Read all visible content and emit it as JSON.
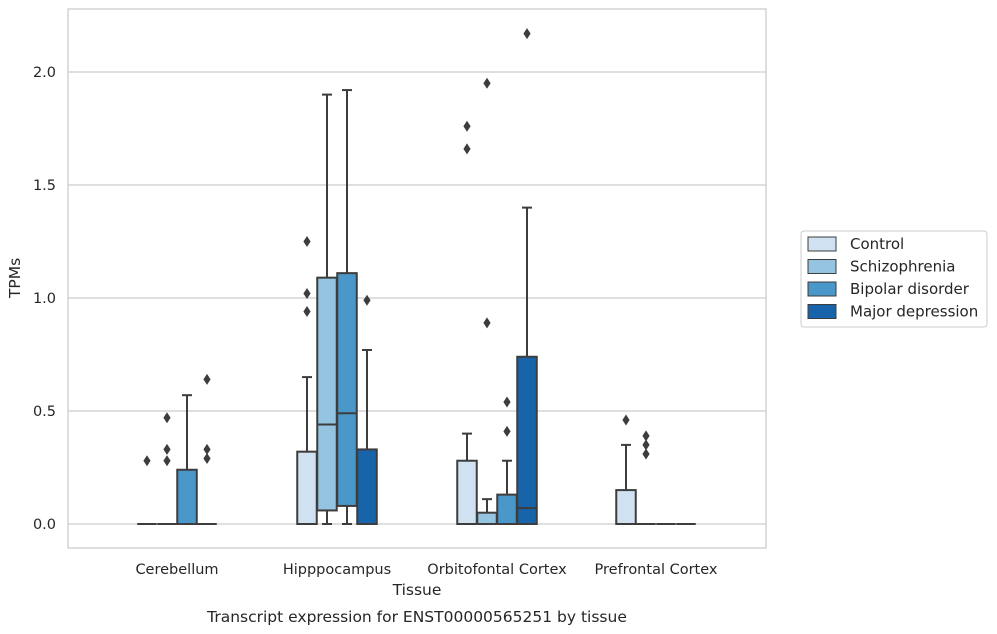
{
  "chart_data": {
    "type": "box",
    "title": "",
    "xlabel": "Tissue",
    "ylabel": "TPMs",
    "caption": "Transcript expression for ENST00000565251 by tissue",
    "ylim": [
      -0.1,
      2.28
    ],
    "yticks": [
      "0.0",
      "0.5",
      "1.0",
      "1.5",
      "2.0"
    ],
    "grid": "horizontal",
    "legend_position": "right",
    "categories": [
      "Cerebellum",
      "Hipppocampus",
      "Orbitofontal Cortex",
      "Prefrontal Cortex"
    ],
    "series": [
      {
        "name": "Control",
        "color": "#d0e1f2",
        "boxes": [
          {
            "q1": 0,
            "median": 0,
            "q3": 0,
            "whisker_low": 0,
            "whisker_high": 0,
            "outliers": [
              0.28
            ]
          },
          {
            "q1": 0,
            "median": 0,
            "q3": 0.32,
            "whisker_low": 0,
            "whisker_high": 0.65,
            "outliers": [
              0.94,
              1.02,
              1.25
            ]
          },
          {
            "q1": 0,
            "median": 0,
            "q3": 0.28,
            "whisker_low": 0,
            "whisker_high": 0.4,
            "outliers": [
              1.66,
              1.76
            ]
          },
          {
            "q1": 0,
            "median": 0,
            "q3": 0.15,
            "whisker_low": 0,
            "whisker_high": 0.35,
            "outliers": [
              0.46
            ]
          }
        ]
      },
      {
        "name": "Schizophrenia",
        "color": "#94c4df",
        "boxes": [
          {
            "q1": 0,
            "median": 0,
            "q3": 0,
            "whisker_low": 0,
            "whisker_high": 0,
            "outliers": [
              0.28,
              0.33,
              0.47
            ]
          },
          {
            "q1": 0.06,
            "median": 0.44,
            "q3": 1.09,
            "whisker_low": 0,
            "whisker_high": 1.9,
            "outliers": []
          },
          {
            "q1": 0,
            "median": 0,
            "q3": 0.05,
            "whisker_low": 0,
            "whisker_high": 0.11,
            "outliers": [
              0.89,
              1.95
            ]
          },
          {
            "q1": 0,
            "median": 0,
            "q3": 0,
            "whisker_low": 0,
            "whisker_high": 0,
            "outliers": [
              0.31,
              0.35,
              0.39
            ]
          }
        ]
      },
      {
        "name": "Bipolar disorder",
        "color": "#4a98c9",
        "boxes": [
          {
            "q1": 0,
            "median": 0,
            "q3": 0.24,
            "whisker_low": 0,
            "whisker_high": 0.57,
            "outliers": []
          },
          {
            "q1": 0.08,
            "median": 0.49,
            "q3": 1.11,
            "whisker_low": 0,
            "whisker_high": 1.92,
            "outliers": []
          },
          {
            "q1": 0,
            "median": 0,
            "q3": 0.13,
            "whisker_low": 0,
            "whisker_high": 0.28,
            "outliers": [
              0.41,
              0.54
            ]
          },
          {
            "q1": 0,
            "median": 0,
            "q3": 0,
            "whisker_low": 0,
            "whisker_high": 0,
            "outliers": []
          }
        ]
      },
      {
        "name": "Major depression",
        "color": "#1764ab",
        "boxes": [
          {
            "q1": 0,
            "median": 0,
            "q3": 0,
            "whisker_low": 0,
            "whisker_high": 0,
            "outliers": [
              0.29,
              0.33,
              0.64
            ]
          },
          {
            "q1": 0,
            "median": 0,
            "q3": 0.33,
            "whisker_low": 0,
            "whisker_high": 0.77,
            "outliers": [
              0.99
            ]
          },
          {
            "q1": 0,
            "median": 0.07,
            "q3": 0.74,
            "whisker_low": 0,
            "whisker_high": 1.4,
            "outliers": [
              2.17
            ]
          },
          {
            "q1": 0,
            "median": 0,
            "q3": 0,
            "whisker_low": 0,
            "whisker_high": 0,
            "outliers": []
          }
        ]
      }
    ]
  },
  "colors": {
    "grid": "#cccccc",
    "spine": "#cccccc",
    "line": "#3d3d3d",
    "outlier": "#3d3d3d"
  }
}
